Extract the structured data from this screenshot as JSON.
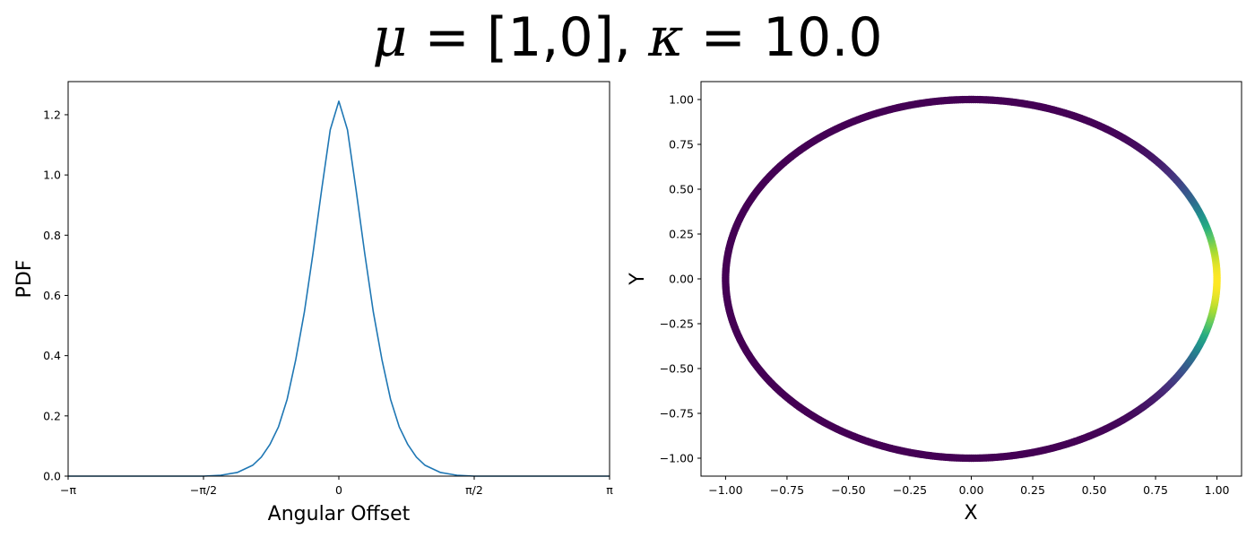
{
  "figure": {
    "title": {
      "mu_symbol": "μ",
      "mu_eq": " = [1,0],  ",
      "kappa_symbol": "κ",
      "kappa_eq": " = 10.0"
    }
  },
  "chart_data": [
    {
      "type": "line",
      "title": "",
      "xlabel": "Angular Offset",
      "ylabel": "PDF",
      "xlim": [
        -3.14159265,
        3.14159265
      ],
      "ylim": [
        0,
        1.31
      ],
      "x_ticks": [
        {
          "value": -3.14159265,
          "label": "−π"
        },
        {
          "value": -1.5707963,
          "label": "−π/2"
        },
        {
          "value": 0,
          "label": "0"
        },
        {
          "value": 1.5707963,
          "label": "π/2"
        },
        {
          "value": 3.14159265,
          "label": "π"
        }
      ],
      "y_ticks": [
        0.0,
        0.2,
        0.4,
        0.6,
        0.8,
        1.0,
        1.2
      ],
      "y_tick_labels": [
        "0.0",
        "0.2",
        "0.4",
        "0.6",
        "0.8",
        "1.0",
        "1.2"
      ],
      "series": [
        {
          "color": "#1f77b4",
          "x": [
            -3.14,
            -2.75,
            -2.36,
            -1.96,
            -1.57,
            -1.37,
            -1.18,
            -1.0,
            -0.9,
            -0.8,
            -0.7,
            -0.6,
            -0.5,
            -0.4,
            -0.3,
            -0.2,
            -0.1,
            0.0,
            0.1,
            0.2,
            0.3,
            0.4,
            0.5,
            0.6,
            0.7,
            0.8,
            0.9,
            1.0,
            1.18,
            1.37,
            1.57,
            1.96,
            2.36,
            2.75,
            3.14
          ],
          "y": [
            0.0,
            0.0,
            0.0,
            0.0,
            0.0,
            0.003,
            0.012,
            0.036,
            0.063,
            0.105,
            0.164,
            0.255,
            0.387,
            0.545,
            0.74,
            0.95,
            1.15,
            1.245,
            1.15,
            0.95,
            0.74,
            0.545,
            0.387,
            0.255,
            0.164,
            0.105,
            0.063,
            0.036,
            0.012,
            0.003,
            0.0,
            0.0,
            0.0,
            0.0,
            0.0
          ]
        }
      ],
      "grid": false
    },
    {
      "type": "scatter",
      "title": "",
      "xlabel": "X",
      "ylabel": "Y",
      "xlim": [
        -1.1,
        1.1
      ],
      "ylim": [
        -1.1,
        1.1
      ],
      "x_ticks": [
        -1.0,
        -0.75,
        -0.5,
        -0.25,
        0.0,
        0.25,
        0.5,
        0.75,
        1.0
      ],
      "x_tick_labels": [
        "−1.00",
        "−0.75",
        "−0.50",
        "−0.25",
        "0.00",
        "0.25",
        "0.50",
        "0.75",
        "1.00"
      ],
      "y_ticks": [
        -1.0,
        -0.75,
        -0.5,
        -0.25,
        0.0,
        0.25,
        0.5,
        0.75,
        1.0
      ],
      "y_tick_labels": [
        "−1.00",
        "−0.75",
        "−0.50",
        "−0.25",
        "0.00",
        "0.25",
        "0.50",
        "0.75",
        "1.00"
      ],
      "points": "unit circle x=cos(t), y=sin(t), colored by von Mises density",
      "colormap": "viridis",
      "kappa": 10.0,
      "mu": [
        1,
        0
      ],
      "grid": false
    }
  ]
}
